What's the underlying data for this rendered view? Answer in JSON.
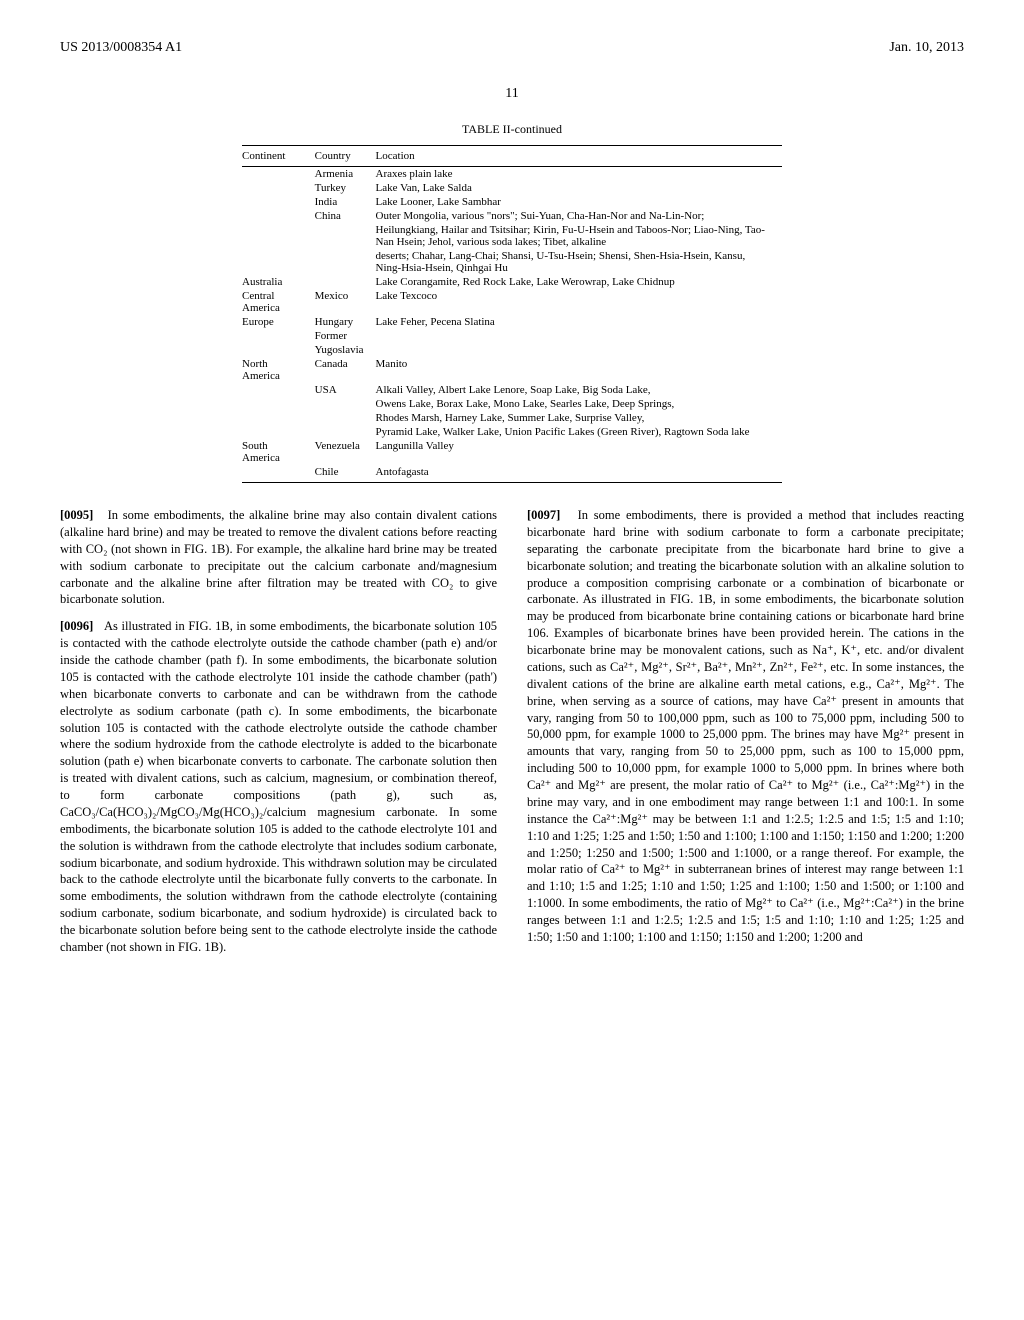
{
  "header": {
    "left": "US 2013/0008354 A1",
    "right": "Jan. 10, 2013"
  },
  "page_number": "11",
  "table": {
    "title": "TABLE II-continued",
    "columns": [
      "Continent",
      "Country",
      "Location"
    ],
    "rows": [
      [
        "",
        "Armenia",
        "Araxes plain lake"
      ],
      [
        "",
        "Turkey",
        "Lake Van, Lake Salda"
      ],
      [
        "",
        "India",
        "Lake Looner, Lake Sambhar"
      ],
      [
        "",
        "China",
        "Outer Mongolia, various \"nors\"; Sui-Yuan, Cha-Han-Nor and Na-Lin-Nor;"
      ],
      [
        "",
        "",
        "Heilungkiang, Hailar and Tsitsihar; Kirin, Fu-U-Hsein and Taboos-Nor; Liao-Ning, Tao-Nan Hsein; Jehol, various soda lakes; Tibet, alkaline"
      ],
      [
        "",
        "",
        "deserts; Chahar, Lang-Chai; Shansi, U-Tsu-Hsein; Shensi, Shen-Hsia-Hsein, Kansu, Ning-Hsia-Hsein, Qinhgai Hu"
      ],
      [
        "Australia",
        "",
        "Lake Corangamite, Red Rock Lake, Lake Werowrap, Lake Chidnup"
      ],
      [
        "Central America",
        "Mexico",
        "Lake Texcoco"
      ],
      [
        "Europe",
        "Hungary",
        "Lake Feher, Pecena Slatina"
      ],
      [
        "",
        "Former",
        ""
      ],
      [
        "",
        "Yugoslavia",
        ""
      ],
      [
        "North America",
        "Canada",
        "Manito"
      ],
      [
        "",
        "USA",
        "Alkali Valley, Albert Lake Lenore, Soap Lake, Big Soda Lake,"
      ],
      [
        "",
        "",
        "Owens Lake, Borax Lake, Mono Lake, Searles Lake, Deep Springs,"
      ],
      [
        "",
        "",
        "Rhodes Marsh, Harney Lake, Summer Lake, Surprise Valley,"
      ],
      [
        "",
        "",
        "Pyramid Lake, Walker Lake, Union Pacific Lakes (Green River), Ragtown Soda lake"
      ],
      [
        "South America",
        "Venezuela",
        "Langunilla Valley"
      ],
      [
        "",
        "Chile",
        "Antofagasta"
      ]
    ]
  },
  "paragraphs": {
    "p95_num": "[0095]",
    "p95": "In some embodiments, the alkaline brine may also contain divalent cations (alkaline hard brine) and may be treated to remove the divalent cations before reacting with CO₂ (not shown in FIG. 1B). For example, the alkaline hard brine may be treated with sodium carbonate to precipitate out the calcium carbonate and/magnesium carbonate and the alkaline brine after filtration may be treated with CO₂ to give bicarbonate solution.",
    "p96_num": "[0096]",
    "p96": "As illustrated in FIG. 1B, in some embodiments, the bicarbonate solution 105 is contacted with the cathode electrolyte outside the cathode chamber (path e) and/or inside the cathode chamber (path f). In some embodiments, the bicarbonate solution 105 is contacted with the cathode electrolyte 101 inside the cathode chamber (path') when bicarbonate converts to carbonate and can be withdrawn from the cathode electrolyte as sodium carbonate (path c). In some embodiments, the bicarbonate solution 105 is contacted with the cathode electrolyte outside the cathode chamber where the sodium hydroxide from the cathode electrolyte is added to the bicarbonate solution (path e) when bicarbonate converts to carbonate. The carbonate solution then is treated with divalent cations, such as calcium, magnesium, or combination thereof, to form carbonate compositions (path g), such as, CaCO₃/Ca(HCO₃)₂/MgCO₃/Mg(HCO₃)₂/calcium magnesium carbonate. In some embodiments, the bicarbonate solution 105 is added to the cathode electrolyte 101 and the solution is withdrawn from the cathode electrolyte that includes sodium carbonate, sodium bicarbonate, and sodium hydroxide. This withdrawn solution may be circulated back to the cathode electrolyte until the bicarbonate fully converts to the carbonate. In some embodiments, the solution withdrawn from the cathode electrolyte (containing sodium carbonate, sodium bicarbonate, and sodium hydroxide) is circulated back to the bicarbonate solution before being sent to the cathode electrolyte inside the cathode chamber (not shown in FIG. 1B).",
    "p97_num": "[0097]",
    "p97": "In some embodiments, there is provided a method that includes reacting bicarbonate hard brine with sodium carbonate to form a carbonate precipitate; separating the carbonate precipitate from the bicarbonate hard brine to give a bicarbonate solution; and treating the bicarbonate solution with an alkaline solution to produce a composition comprising carbonate or a combination of bicarbonate or carbonate. As illustrated in FIG. 1B, in some embodiments, the bicarbonate solution may be produced from bicarbonate brine containing cations or bicarbonate hard brine 106. Examples of bicarbonate brines have been provided herein. The cations in the bicarbonate brine may be monovalent cations, such as Na⁺, K⁺, etc. and/or divalent cations, such as Ca²⁺, Mg²⁺, Sr²⁺, Ba²⁺, Mn²⁺, Zn²⁺, Fe²⁺, etc. In some instances, the divalent cations of the brine are alkaline earth metal cations, e.g., Ca²⁺, Mg²⁺. The brine, when serving as a source of cations, may have Ca²⁺ present in amounts that vary, ranging from 50 to 100,000 ppm, such as 100 to 75,000 ppm, including 500 to 50,000 ppm, for example 1000 to 25,000 ppm. The brines may have Mg²⁺ present in amounts that vary, ranging from 50 to 25,000 ppm, such as 100 to 15,000 ppm, including 500 to 10,000 ppm, for example 1000 to 5,000 ppm. In brines where both Ca²⁺ and Mg²⁺ are present, the molar ratio of Ca²⁺ to Mg²⁺ (i.e., Ca²⁺:Mg²⁺) in the brine may vary, and in one embodiment may range between 1:1 and 100:1. In some instance the Ca²⁺:Mg²⁺ may be between 1:1 and 1:2.5; 1:2.5 and 1:5; 1:5 and 1:10; 1:10 and 1:25; 1:25 and 1:50; 1:50 and 1:100; 1:100 and 1:150; 1:150 and 1:200; 1:200 and 1:250; 1:250 and 1:500; 1:500 and 1:1000, or a range thereof. For example, the molar ratio of Ca²⁺ to Mg²⁺ in subterranean brines of interest may range between 1:1 and 1:10; 1:5 and 1:25; 1:10 and 1:50; 1:25 and 1:100; 1:50 and 1:500; or 1:100 and 1:1000. In some embodiments, the ratio of Mg²⁺ to Ca²⁺ (i.e., Mg²⁺:Ca²⁺) in the brine ranges between 1:1 and 1:2.5; 1:2.5 and 1:5; 1:5 and 1:10; 1:10 and 1:25; 1:25 and 1:50; 1:50 and 1:100; 1:100 and 1:150; 1:150 and 1:200; 1:200 and"
  }
}
